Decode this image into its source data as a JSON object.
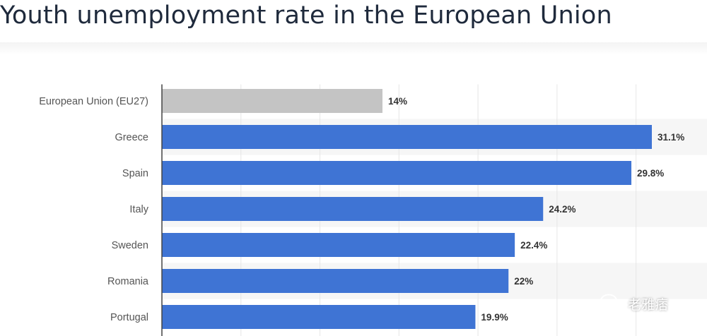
{
  "page": {
    "title": "Youth unemployment rate in the European Union"
  },
  "watermark": {
    "icon": "wechat-icon",
    "text": "老雅痞"
  },
  "colors": {
    "highlight_bar": "#c4c4c4",
    "bar": "#3f74d4",
    "grid": "#e6e6e6",
    "band": "#f6f6f6",
    "axis": "#444444"
  },
  "chart_data": {
    "type": "bar",
    "orientation": "horizontal",
    "title": "Youth unemployment rate in the European Union",
    "xlabel": "",
    "ylabel": "",
    "xlim": [
      0,
      31.1
    ],
    "grid": true,
    "categories": [
      "European Union (EU27)",
      "Greece",
      "Spain",
      "Italy",
      "Sweden",
      "Romania",
      "Portugal"
    ],
    "values": [
      14,
      31.1,
      29.8,
      24.2,
      22.4,
      22,
      19.9
    ],
    "value_labels": [
      "14%",
      "31.1%",
      "29.8%",
      "24.2%",
      "22.4%",
      "22%",
      "19.9%"
    ],
    "highlighted": [
      "European Union (EU27)"
    ]
  }
}
